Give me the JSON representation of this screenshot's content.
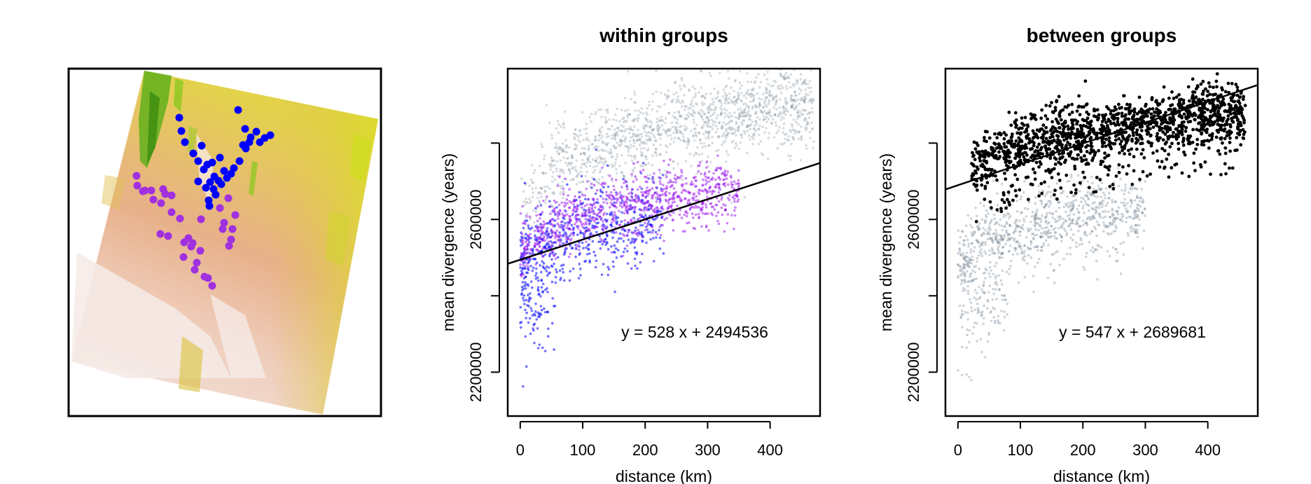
{
  "chart_data": [
    {
      "type": "map",
      "title": "",
      "series": [
        {
          "color": "#0000ff",
          "points": [
            [
              256,
              168
            ],
            [
              259,
              187
            ],
            [
              264,
              203
            ],
            [
              288,
              208
            ],
            [
              276,
              219
            ],
            [
              283,
              230
            ],
            [
              296,
              235
            ],
            [
              300,
              260
            ],
            [
              308,
              278
            ],
            [
              330,
              248
            ],
            [
              342,
              230
            ],
            [
              351,
              212
            ],
            [
              358,
              196
            ],
            [
              366,
              188
            ],
            [
              378,
              197
            ],
            [
              386,
              193
            ],
            [
              340,
              157
            ],
            [
              350,
              184
            ],
            [
              314,
              225
            ],
            [
              320,
              244
            ],
            [
              306,
              252
            ],
            [
              294,
              268
            ],
            [
              316,
              263
            ],
            [
              334,
              240
            ],
            [
              291,
              242
            ],
            [
              303,
              232
            ],
            [
              312,
              258
            ],
            [
              324,
              254
            ],
            [
              347,
              207
            ],
            [
              356,
              203
            ],
            [
              371,
              203
            ],
            [
              283,
              259
            ],
            [
              298,
              286
            ],
            [
              299,
              294
            ],
            [
              305,
              270
            ]
          ]
        },
        {
          "color": "#a030e0",
          "points": [
            [
              195,
              251
            ],
            [
              207,
              272
            ],
            [
              219,
              285
            ],
            [
              236,
              277
            ],
            [
              245,
              303
            ],
            [
              240,
              337
            ],
            [
              263,
              346
            ],
            [
              286,
              358
            ],
            [
              278,
              385
            ],
            [
              297,
              397
            ],
            [
              303,
              408
            ],
            [
              318,
              327
            ],
            [
              330,
              342
            ],
            [
              336,
              307
            ],
            [
              326,
              283
            ],
            [
              229,
              334
            ],
            [
              257,
              312
            ],
            [
              275,
              347
            ],
            [
              262,
              367
            ],
            [
              281,
              375
            ],
            [
              292,
              395
            ],
            [
              287,
              313
            ],
            [
              196,
              265
            ],
            [
              204,
              273
            ],
            [
              216,
              272
            ],
            [
              233,
              270
            ],
            [
              245,
              279
            ],
            [
              230,
              290
            ],
            [
              269,
              340
            ],
            [
              273,
              352
            ],
            [
              314,
              297
            ],
            [
              320,
              318
            ],
            [
              332,
              327
            ],
            [
              327,
              351
            ]
          ]
        }
      ]
    },
    {
      "type": "scatter",
      "title": "within groups",
      "xlabel": "distance (km)",
      "ylabel": "mean divergence (years)",
      "xlim": [
        -20,
        480
      ],
      "ylim": [
        2085000,
        2995000
      ],
      "xticks": [
        "0",
        "100",
        "200",
        "300",
        "400"
      ],
      "yticks": [
        "2200000",
        "2600000"
      ],
      "y_minor_ticks": [
        2400000,
        2800000
      ],
      "series": [
        {
          "color": "#708090",
          "description_points": "background cloud",
          "x_range": [
            0,
            470
          ],
          "trend": "log"
        },
        {
          "color": "#0000ff",
          "x_range": [
            0,
            230
          ]
        },
        {
          "color": "#a020f0",
          "x_range": [
            0,
            350
          ]
        }
      ],
      "regression": {
        "slope": 528,
        "intercept": 2494536
      },
      "annotation": "y = 528 x + 2494536"
    },
    {
      "type": "scatter",
      "title": "between groups",
      "xlabel": "distance (km)",
      "ylabel": "mean divergence (years)",
      "xlim": [
        -20,
        480
      ],
      "ylim": [
        2085000,
        2995000
      ],
      "xticks": [
        "0",
        "100",
        "200",
        "300",
        "400"
      ],
      "yticks": [
        "2200000",
        "2600000"
      ],
      "y_minor_ticks": [
        2400000,
        2800000
      ],
      "series": [
        {
          "color": "#708090",
          "x_range": [
            0,
            300
          ]
        },
        {
          "color": "#000000",
          "x_range": [
            20,
            460
          ]
        }
      ],
      "regression": {
        "slope": 547,
        "intercept": 2689681
      },
      "annotation": "y = 547 x + 2689681"
    }
  ]
}
